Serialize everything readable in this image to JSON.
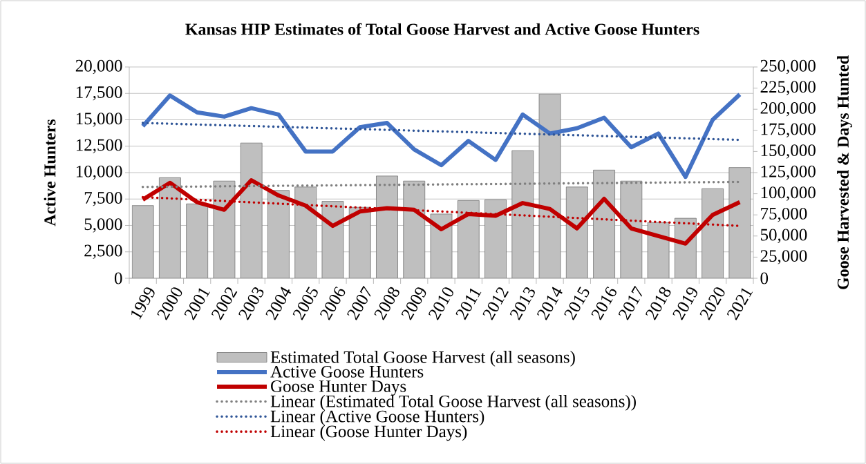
{
  "chart_data": {
    "type": "bar",
    "title": "Kansas HIP Estimates of Total Goose Harvest and Active Goose Hunters",
    "ylabel": "Active Hunters",
    "y2label": "Goose Harvested & Days Hunted",
    "categories": [
      "1999",
      "2000",
      "2001",
      "2002",
      "2003",
      "2004",
      "2005",
      "2006",
      "2007",
      "2008",
      "2009",
      "2010",
      "2011",
      "2012",
      "2013",
      "2014",
      "2015",
      "2016",
      "2017",
      "2018",
      "2019",
      "2020",
      "2021"
    ],
    "series": [
      {
        "name": "Estimated Total Goose Harvest (all seasons)",
        "axis": "y2",
        "color": "#bfbfbf",
        "values": [
          86000,
          119000,
          88000,
          115000,
          160000,
          104000,
          108000,
          91000,
          84000,
          121000,
          115000,
          76000,
          92000,
          93000,
          151000,
          218000,
          108000,
          128000,
          115000,
          66000,
          71000,
          106000,
          131000
        ]
      },
      {
        "name": "Active Goose Hunters",
        "type": "line",
        "axis": "y",
        "color": "#4472c4",
        "values": [
          14400,
          17300,
          15700,
          15300,
          16100,
          15500,
          12000,
          12000,
          14300,
          14700,
          12200,
          10700,
          13000,
          11200,
          15500,
          13700,
          14200,
          15200,
          12400,
          13700,
          9600,
          15000,
          17400
        ]
      },
      {
        "name": "Goose Hunter Days",
        "type": "line",
        "axis": "y2",
        "color": "#c00000",
        "values": [
          93000,
          113000,
          90000,
          81000,
          116000,
          98000,
          86000,
          62000,
          79000,
          83000,
          81000,
          58000,
          76000,
          74000,
          89000,
          82000,
          59000,
          94000,
          59000,
          50000,
          41000,
          75000,
          90000
        ]
      },
      {
        "name": "Linear (Estimated Total Goose Harvest (all seasons))",
        "type": "line",
        "axis": "y2",
        "line_style": "dotted",
        "color": "#7f7f7f",
        "values": [
          108000,
          108300,
          108500,
          108800,
          109100,
          109400,
          109600,
          109900,
          110200,
          110500,
          110700,
          111000,
          111300,
          111500,
          111800,
          112100,
          112400,
          112600,
          112900,
          113200,
          113500,
          113700,
          114000
        ]
      },
      {
        "name": "Linear (Active Goose Hunters)",
        "type": "line",
        "axis": "y",
        "line_style": "dotted",
        "color": "#2f5597",
        "values": [
          14700,
          14630,
          14550,
          14480,
          14410,
          14340,
          14260,
          14190,
          14120,
          14050,
          13970,
          13900,
          13830,
          13750,
          13680,
          13610,
          13540,
          13460,
          13390,
          13320,
          13250,
          13170,
          13100
        ]
      },
      {
        "name": "Linear (Goose Hunter Days)",
        "type": "line",
        "axis": "y2",
        "line_style": "dotted",
        "color": "#c00000",
        "values": [
          96000,
          94500,
          92900,
          91400,
          89800,
          88300,
          86700,
          85200,
          83600,
          82100,
          80500,
          79000,
          77500,
          75900,
          74400,
          72800,
          71300,
          69700,
          68200,
          66600,
          65100,
          63500,
          62000
        ]
      }
    ],
    "ylim": [
      0,
      20000
    ],
    "yticks": [
      0,
      {
        "value": 2500,
        "label": "2,500"
      },
      {
        "value": 5000,
        "label": "5,000"
      },
      {
        "value": 7500,
        "label": "7,500"
      },
      {
        "value": 10000,
        "label": "10,000"
      },
      {
        "value": 12500,
        "label": "12,500"
      },
      {
        "value": 15000,
        "label": "15,000"
      },
      {
        "value": 17500,
        "label": "17,500"
      },
      {
        "value": 20000,
        "label": "20,000"
      }
    ],
    "y2lim": [
      0,
      250000
    ],
    "y2ticks": [
      0,
      {
        "value": 25000,
        "label": "25,000"
      },
      {
        "value": 50000,
        "label": "50,000"
      },
      {
        "value": 75000,
        "label": "75,000"
      },
      {
        "value": 100000,
        "label": "100,000"
      },
      {
        "value": 125000,
        "label": "125,000"
      },
      {
        "value": 150000,
        "label": "150,000"
      },
      {
        "value": 175000,
        "label": "175,000"
      },
      {
        "value": 200000,
        "label": "200,000"
      },
      {
        "value": 225000,
        "label": "225,000"
      },
      {
        "value": 250000,
        "label": "250,000"
      }
    ],
    "grid": "y",
    "legend": "bottom"
  }
}
